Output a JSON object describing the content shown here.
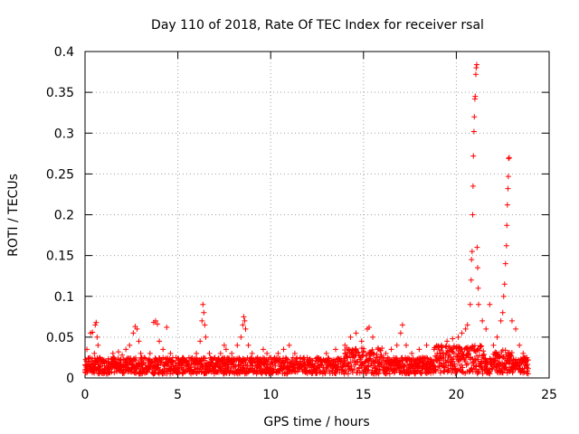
{
  "chart_data": {
    "type": "scatter",
    "title": "Day 110 of 2018, Rate Of TEC Index for receiver rsal",
    "xlabel": "GPS time / hours",
    "ylabel": "ROTI / TECUs",
    "xlim": [
      0,
      25
    ],
    "ylim": [
      0,
      0.4
    ],
    "xticks": [
      0,
      5,
      10,
      15,
      20,
      25
    ],
    "yticks": [
      0,
      0.05,
      0.1,
      0.15,
      0.2,
      0.25,
      0.3,
      0.35,
      0.4
    ],
    "xtick_labels": [
      "0",
      "5",
      "10",
      "15",
      "20",
      "25"
    ],
    "ytick_labels": [
      "0",
      "0.05",
      "0.1",
      "0.15",
      "0.2",
      "0.25",
      "0.3",
      "0.35",
      "0.4"
    ],
    "grid": true,
    "marker": "+",
    "color": "#ff0000",
    "series": [
      {
        "name": "ROTI",
        "points": [
          [
            0.05,
            0.01
          ],
          [
            0.1,
            0.035
          ],
          [
            0.2,
            0.02
          ],
          [
            0.3,
            0.055
          ],
          [
            0.4,
            0.056
          ],
          [
            0.5,
            0.03
          ],
          [
            0.55,
            0.065
          ],
          [
            0.6,
            0.068
          ],
          [
            0.65,
            0.05
          ],
          [
            0.7,
            0.04
          ],
          [
            0.8,
            0.025
          ],
          [
            1.0,
            0.02
          ],
          [
            1.5,
            0.03
          ],
          [
            1.8,
            0.032
          ],
          [
            2.0,
            0.028
          ],
          [
            2.2,
            0.035
          ],
          [
            2.4,
            0.04
          ],
          [
            2.6,
            0.055
          ],
          [
            2.7,
            0.063
          ],
          [
            2.8,
            0.06
          ],
          [
            2.9,
            0.045
          ],
          [
            3.0,
            0.03
          ],
          [
            3.2,
            0.025
          ],
          [
            3.5,
            0.03
          ],
          [
            3.7,
            0.068
          ],
          [
            3.8,
            0.07
          ],
          [
            3.9,
            0.066
          ],
          [
            4.0,
            0.045
          ],
          [
            4.2,
            0.035
          ],
          [
            4.4,
            0.062
          ],
          [
            4.6,
            0.03
          ],
          [
            4.9,
            0.025
          ],
          [
            5.2,
            0.02
          ],
          [
            5.6,
            0.025
          ],
          [
            6.0,
            0.03
          ],
          [
            6.2,
            0.045
          ],
          [
            6.3,
            0.07
          ],
          [
            6.35,
            0.09
          ],
          [
            6.4,
            0.08
          ],
          [
            6.45,
            0.065
          ],
          [
            6.5,
            0.05
          ],
          [
            6.7,
            0.03
          ],
          [
            7.0,
            0.025
          ],
          [
            7.3,
            0.03
          ],
          [
            7.5,
            0.04
          ],
          [
            7.6,
            0.035
          ],
          [
            7.9,
            0.03
          ],
          [
            8.2,
            0.04
          ],
          [
            8.4,
            0.05
          ],
          [
            8.5,
            0.065
          ],
          [
            8.55,
            0.075
          ],
          [
            8.6,
            0.07
          ],
          [
            8.65,
            0.06
          ],
          [
            8.8,
            0.04
          ],
          [
            9.0,
            0.03
          ],
          [
            9.3,
            0.025
          ],
          [
            9.6,
            0.035
          ],
          [
            9.8,
            0.03
          ],
          [
            10.0,
            0.025
          ],
          [
            10.4,
            0.03
          ],
          [
            10.7,
            0.035
          ],
          [
            11.0,
            0.04
          ],
          [
            11.3,
            0.03
          ],
          [
            11.6,
            0.025
          ],
          [
            12.0,
            0.02
          ],
          [
            12.5,
            0.025
          ],
          [
            13.0,
            0.03
          ],
          [
            13.5,
            0.035
          ],
          [
            14.0,
            0.04
          ],
          [
            14.3,
            0.05
          ],
          [
            14.6,
            0.055
          ],
          [
            14.9,
            0.045
          ],
          [
            15.2,
            0.06
          ],
          [
            15.3,
            0.062
          ],
          [
            15.5,
            0.05
          ],
          [
            15.8,
            0.035
          ],
          [
            16.2,
            0.03
          ],
          [
            16.5,
            0.035
          ],
          [
            16.8,
            0.04
          ],
          [
            17.0,
            0.055
          ],
          [
            17.1,
            0.065
          ],
          [
            17.3,
            0.04
          ],
          [
            17.6,
            0.03
          ],
          [
            18.0,
            0.035
          ],
          [
            18.4,
            0.04
          ],
          [
            18.8,
            0.035
          ],
          [
            19.2,
            0.04
          ],
          [
            19.5,
            0.045
          ],
          [
            19.8,
            0.048
          ],
          [
            20.1,
            0.05
          ],
          [
            20.3,
            0.055
          ],
          [
            20.5,
            0.06
          ],
          [
            20.6,
            0.065
          ],
          [
            20.75,
            0.09
          ],
          [
            20.8,
            0.12
          ],
          [
            20.82,
            0.145
          ],
          [
            20.85,
            0.155
          ],
          [
            20.88,
            0.2
          ],
          [
            20.9,
            0.235
          ],
          [
            20.92,
            0.272
          ],
          [
            20.95,
            0.302
          ],
          [
            20.97,
            0.32
          ],
          [
            21.0,
            0.342
          ],
          [
            21.02,
            0.345
          ],
          [
            21.05,
            0.372
          ],
          [
            21.07,
            0.38
          ],
          [
            21.1,
            0.384
          ],
          [
            21.12,
            0.16
          ],
          [
            21.15,
            0.135
          ],
          [
            21.18,
            0.11
          ],
          [
            21.2,
            0.09
          ],
          [
            21.4,
            0.07
          ],
          [
            21.6,
            0.06
          ],
          [
            21.8,
            0.09
          ],
          [
            22.0,
            0.04
          ],
          [
            22.2,
            0.05
          ],
          [
            22.4,
            0.07
          ],
          [
            22.5,
            0.08
          ],
          [
            22.55,
            0.1
          ],
          [
            22.6,
            0.115
          ],
          [
            22.65,
            0.14
          ],
          [
            22.7,
            0.162
          ],
          [
            22.72,
            0.187
          ],
          [
            22.75,
            0.212
          ],
          [
            22.78,
            0.232
          ],
          [
            22.8,
            0.247
          ],
          [
            22.82,
            0.269
          ],
          [
            22.85,
            0.27
          ],
          [
            23.0,
            0.07
          ],
          [
            23.2,
            0.06
          ],
          [
            23.4,
            0.04
          ],
          [
            23.6,
            0.03
          ],
          [
            23.8,
            0.025
          ]
        ],
        "baseline": {
          "x_start": 0,
          "x_end": 23.9,
          "typical_range": [
            0.005,
            0.025
          ]
        }
      }
    ]
  }
}
